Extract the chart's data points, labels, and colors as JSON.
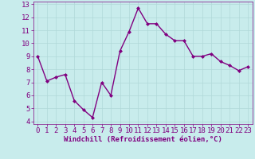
{
  "x": [
    0,
    1,
    2,
    3,
    4,
    5,
    6,
    7,
    8,
    9,
    10,
    11,
    12,
    13,
    14,
    15,
    16,
    17,
    18,
    19,
    20,
    21,
    22,
    23
  ],
  "y": [
    9.0,
    7.1,
    7.4,
    7.6,
    5.6,
    4.9,
    4.3,
    7.0,
    6.0,
    9.4,
    10.9,
    12.7,
    11.5,
    11.5,
    10.7,
    10.2,
    10.2,
    9.0,
    9.0,
    9.2,
    8.6,
    8.3,
    7.9,
    8.2
  ],
  "line_color": "#800080",
  "marker": "D",
  "marker_size": 2,
  "bg_color": "#c8ecec",
  "grid_color": "#b0d8d8",
  "xlabel": "Windchill (Refroidissement éolien,°C)",
  "xlim": [
    -0.5,
    23.5
  ],
  "ylim": [
    3.8,
    13.2
  ],
  "yticks": [
    4,
    5,
    6,
    7,
    8,
    9,
    10,
    11,
    12,
    13
  ],
  "xticks": [
    0,
    1,
    2,
    3,
    4,
    5,
    6,
    7,
    8,
    9,
    10,
    11,
    12,
    13,
    14,
    15,
    16,
    17,
    18,
    19,
    20,
    21,
    22,
    23
  ],
  "tick_color": "#800080",
  "label_color": "#800080",
  "label_fontsize": 6.5,
  "tick_fontsize": 6.5,
  "linewidth": 1.0
}
